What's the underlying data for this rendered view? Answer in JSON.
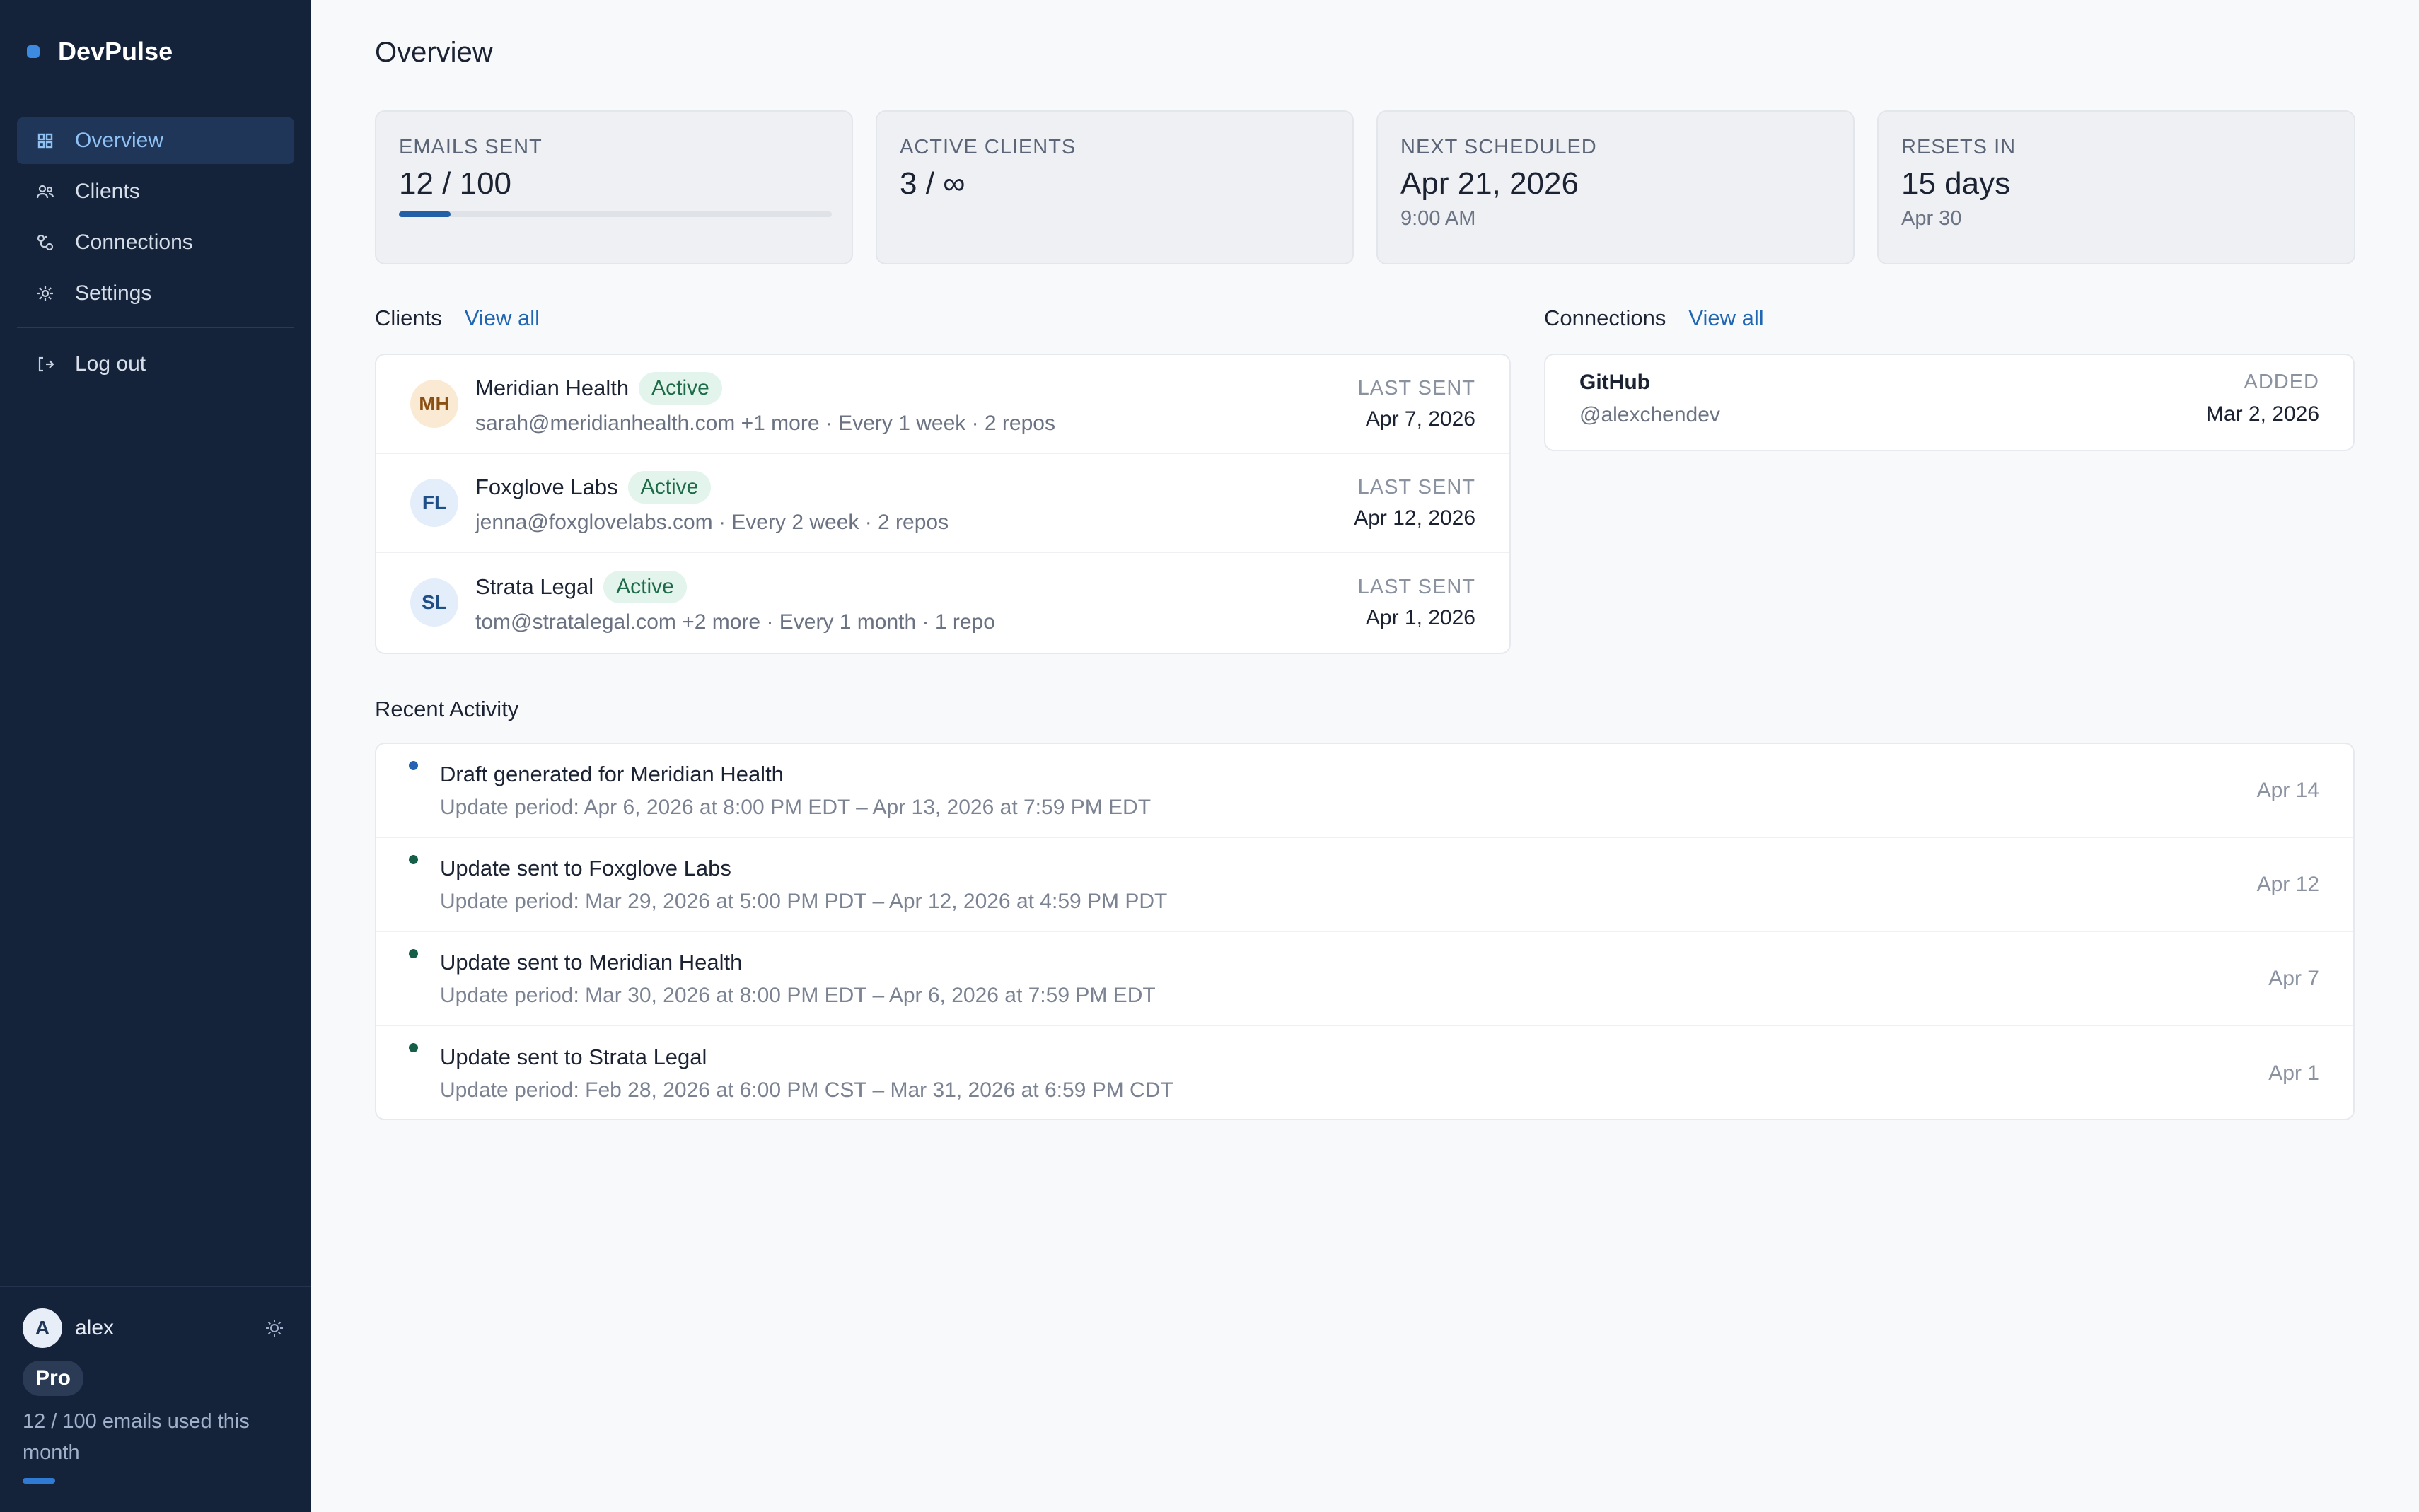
{
  "app": {
    "name": "DevPulse"
  },
  "sidebar": {
    "items": [
      {
        "label": "Overview",
        "icon": "grid-icon",
        "active": true
      },
      {
        "label": "Clients",
        "icon": "users-icon",
        "active": false
      },
      {
        "label": "Connections",
        "icon": "connections-icon",
        "active": false
      },
      {
        "label": "Settings",
        "icon": "gear-icon",
        "active": false
      }
    ],
    "logout_label": "Log out",
    "user": {
      "initial": "A",
      "name": "alex",
      "plan": "Pro",
      "usage_text": "12 / 100 emails used this month",
      "usage_fraction": 0.12
    }
  },
  "page": {
    "title": "Overview"
  },
  "stats": [
    {
      "label": "EMAILS SENT",
      "value": "12 / 100",
      "progress": 0.12
    },
    {
      "label": "ACTIVE CLIENTS",
      "value": "3 / ∞"
    },
    {
      "label": "NEXT SCHEDULED",
      "value": "Apr 21, 2026",
      "sub": "9:00 AM"
    },
    {
      "label": "RESETS IN",
      "value": "15 days",
      "sub": "Apr 30"
    }
  ],
  "clients": {
    "title": "Clients",
    "view_all": "View all",
    "last_sent_label": "LAST SENT",
    "rows": [
      {
        "initials": "MH",
        "name": "Meridian Health",
        "status": "Active",
        "meta": "sarah@meridianhealth.com +1 more · Every 1 week · 2 repos",
        "last_sent": "Apr 7, 2026",
        "avatar_bg": "#fbead3",
        "avatar_fg": "#8a4f14"
      },
      {
        "initials": "FL",
        "name": "Foxglove Labs",
        "status": "Active",
        "meta": "jenna@foxglovelabs.com · Every 2 week · 2 repos",
        "last_sent": "Apr 12, 2026",
        "avatar_bg": "#e3eefa",
        "avatar_fg": "#1f4f86"
      },
      {
        "initials": "SL",
        "name": "Strata Legal",
        "status": "Active",
        "meta": "tom@stratalegal.com +2 more · Every 1 month · 1 repo",
        "last_sent": "Apr 1, 2026",
        "avatar_bg": "#e3eefa",
        "avatar_fg": "#1f4f86"
      }
    ]
  },
  "connections": {
    "title": "Connections",
    "view_all": "View all",
    "added_label": "ADDED",
    "rows": [
      {
        "name": "GitHub",
        "handle": "@alexchendev",
        "added": "Mar 2, 2026"
      }
    ]
  },
  "activity": {
    "title": "Recent Activity",
    "rows": [
      {
        "title": "Draft generated for Meridian Health",
        "period": "Update period: Apr 6, 2026 at 8:00 PM EDT – Apr 13, 2026 at 7:59 PM EDT",
        "date": "Apr 14",
        "dot_color": "#2563b0"
      },
      {
        "title": "Update sent to Foxglove Labs",
        "period": "Update period: Mar 29, 2026 at 5:00 PM PDT – Apr 12, 2026 at 4:59 PM PDT",
        "date": "Apr 12",
        "dot_color": "#155e47"
      },
      {
        "title": "Update sent to Meridian Health",
        "period": "Update period: Mar 30, 2026 at 8:00 PM EDT – Apr 6, 2026 at 7:59 PM EDT",
        "date": "Apr 7",
        "dot_color": "#155e47"
      },
      {
        "title": "Update sent to Strata Legal",
        "period": "Update period: Feb 28, 2026 at 6:00 PM CST – Mar 31, 2026 at 6:59 PM CDT",
        "date": "Apr 1",
        "dot_color": "#155e47"
      }
    ]
  }
}
